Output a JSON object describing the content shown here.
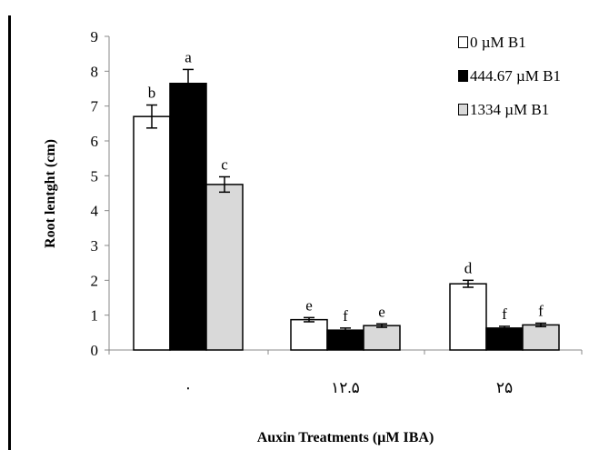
{
  "chart_data": {
    "type": "bar",
    "title": "",
    "xlabel": "Auxin Treatments (µM IBA)",
    "ylabel": "Root lentght (cm)",
    "ylim": [
      0,
      9
    ],
    "yticks": [
      "0",
      "1",
      "2",
      "3",
      "4",
      "5",
      "6",
      "7",
      "8",
      "9"
    ],
    "categories": [
      "۰",
      "۱۲.۵",
      "۲۵"
    ],
    "series": [
      {
        "name": "0 µM B1",
        "color": "#ffffff",
        "values": [
          6.7,
          0.87,
          1.9
        ],
        "errors": [
          0.33,
          0.06,
          0.1
        ],
        "letters": [
          "b",
          "e",
          "d"
        ]
      },
      {
        "name": "444.67 µM B1",
        "color": "#000000",
        "values": [
          7.65,
          0.57,
          0.63
        ],
        "errors": [
          0.4,
          0.06,
          0.05
        ],
        "letters": [
          "a",
          "f",
          "f"
        ]
      },
      {
        "name": "1334 µM B1",
        "color": "#d9d9d9",
        "values": [
          4.75,
          0.7,
          0.72
        ],
        "errors": [
          0.22,
          0.05,
          0.05
        ],
        "letters": [
          "c",
          "e",
          "f"
        ]
      }
    ],
    "legend_position": "top-right",
    "grid": false
  }
}
